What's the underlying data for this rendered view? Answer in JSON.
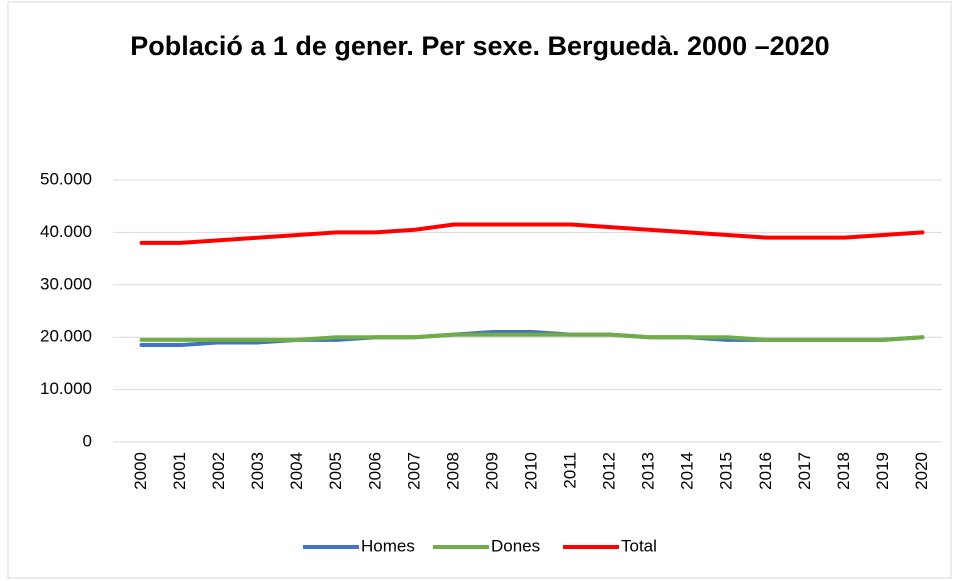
{
  "chart_data": {
    "type": "line",
    "title": "Població a 1 de gener. Per sexe. Berguedà. 2000 –2020",
    "categories": [
      "2000",
      "2001",
      "2002",
      "2003",
      "2004",
      "2005",
      "2006",
      "2007",
      "2008",
      "2009",
      "2010",
      "2011",
      "2012",
      "2013",
      "2014",
      "2015",
      "2016",
      "2017",
      "2018",
      "2019",
      "2020"
    ],
    "series": [
      {
        "name": "Homes",
        "color": "#4472c4",
        "values": [
          18500,
          18500,
          19000,
          19000,
          19500,
          19500,
          20000,
          20000,
          20500,
          21000,
          21000,
          20500,
          20500,
          20000,
          20000,
          19500,
          19500,
          19500,
          19500,
          19500,
          20000
        ]
      },
      {
        "name": "Dones",
        "color": "#70ad47",
        "values": [
          19500,
          19500,
          19500,
          19500,
          19500,
          20000,
          20000,
          20000,
          20500,
          20500,
          20500,
          20500,
          20500,
          20000,
          20000,
          20000,
          19500,
          19500,
          19500,
          19500,
          20000
        ]
      },
      {
        "name": "Total",
        "color": "#ff0000",
        "values": [
          38000,
          38000,
          38500,
          39000,
          39500,
          40000,
          40000,
          40500,
          41500,
          41500,
          41500,
          41500,
          41000,
          40500,
          40000,
          39500,
          39000,
          39000,
          39000,
          39500,
          40000
        ]
      }
    ],
    "ylim": [
      0,
      50000
    ],
    "yticks": [
      0,
      {
        "value": 10000,
        "label": "10.000"
      },
      {
        "value": 20000,
        "label": "20.000"
      },
      {
        "value": 30000,
        "label": "30.000"
      },
      {
        "value": 40000,
        "label": "40.000"
      },
      {
        "value": 50000,
        "label": "50.000"
      }
    ],
    "grid": true,
    "legend": "bottom"
  }
}
